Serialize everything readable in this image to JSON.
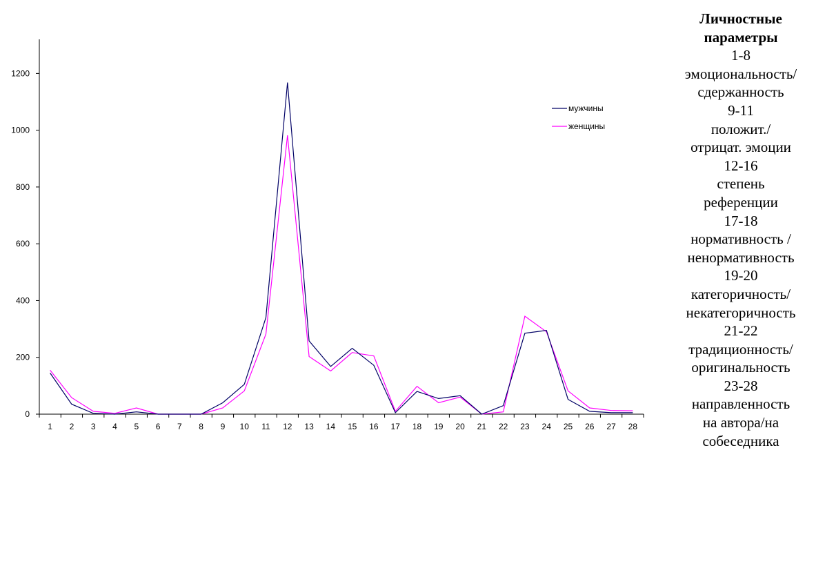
{
  "chart_data": {
    "type": "line",
    "x": [
      1,
      2,
      3,
      4,
      5,
      6,
      7,
      8,
      9,
      10,
      11,
      12,
      13,
      14,
      15,
      16,
      17,
      18,
      19,
      20,
      21,
      22,
      23,
      24,
      25,
      26,
      27,
      28
    ],
    "series": [
      {
        "name": "мужчины",
        "color": "#000066",
        "values": [
          145,
          35,
          3,
          0,
          8,
          0,
          0,
          0,
          40,
          105,
          340,
          1168,
          258,
          168,
          232,
          172,
          5,
          80,
          55,
          65,
          0,
          30,
          285,
          295,
          52,
          10,
          5,
          5
        ]
      },
      {
        "name": "женщины",
        "color": "#ff00ff",
        "values": [
          155,
          58,
          10,
          3,
          22,
          0,
          0,
          0,
          22,
          82,
          282,
          982,
          203,
          152,
          217,
          205,
          10,
          98,
          40,
          60,
          0,
          8,
          345,
          290,
          82,
          22,
          13,
          12
        ]
      }
    ],
    "ylim": [
      0,
      1320
    ],
    "yticks": [
      0,
      200,
      400,
      600,
      800,
      1000,
      1200
    ],
    "legend_position": "top-right",
    "grid": false
  },
  "side_panel": {
    "heading": [
      "Личностные",
      "параметры"
    ],
    "lines": [
      "1-8",
      "эмоциональность/",
      "сдержанность",
      "9-11",
      "положит./",
      "отрицат. эмоции",
      "12-16",
      "степень",
      "референции",
      "17-18",
      "нормативность /",
      "ненормативность",
      "19-20",
      "категоричность/",
      "некатегоричность",
      "21-22",
      "традиционность/",
      "оригинальность",
      "23-28",
      "направленность",
      "на автора/на",
      "собеседника"
    ]
  }
}
